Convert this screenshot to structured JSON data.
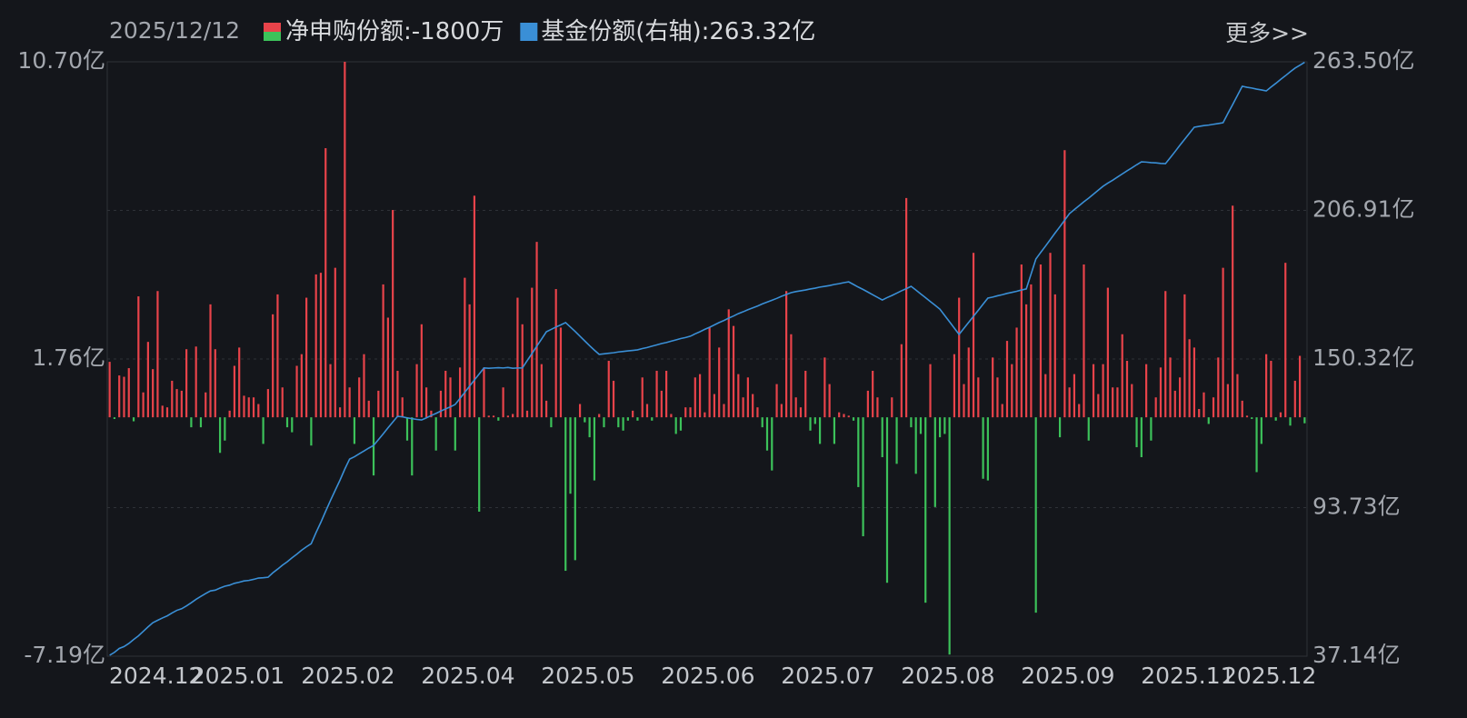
{
  "chart_data": {
    "type": "bar",
    "date": "2025/12/12",
    "more": "更多>>",
    "categories": [
      "2024.12",
      null,
      null,
      null,
      null,
      null,
      null,
      null,
      null,
      null,
      null,
      null,
      null,
      null,
      null,
      null,
      null,
      "2025.01",
      null,
      null,
      null,
      null,
      null,
      null,
      null,
      null,
      null,
      null,
      null,
      null,
      null,
      null,
      null,
      null,
      null,
      null,
      null,
      null,
      null,
      null,
      "2025.02",
      null,
      null,
      null,
      null,
      null,
      null,
      null,
      null,
      null,
      null,
      null,
      null,
      null,
      null,
      null,
      null,
      null,
      null,
      null,
      null,
      null,
      null,
      null,
      null,
      "2025.04",
      null,
      null,
      null,
      null,
      null,
      null,
      null,
      null,
      null,
      null,
      null,
      null,
      null,
      null,
      null,
      null,
      null,
      null,
      null,
      null,
      null,
      null,
      null,
      null,
      "2025.05",
      null,
      null,
      null,
      null,
      null,
      null,
      null,
      null,
      null,
      null,
      null,
      null,
      null,
      null,
      null,
      null,
      null,
      null,
      null,
      null,
      null,
      null,
      null,
      null,
      "2025.06",
      null,
      null,
      null,
      null,
      null,
      null,
      null,
      null,
      null,
      null,
      null,
      null,
      null,
      null,
      null,
      null,
      null,
      null,
      null,
      null,
      null,
      null,
      null,
      null,
      "2025.07",
      null,
      null,
      null,
      null,
      null,
      null,
      null,
      null,
      null,
      null,
      null,
      null,
      null,
      null,
      null,
      null,
      null,
      null,
      null,
      null,
      null,
      null,
      null,
      null,
      "2025.08",
      null,
      null,
      null,
      null,
      null,
      null,
      null,
      null,
      null,
      null,
      null,
      null,
      null,
      null,
      null,
      null,
      null,
      null,
      null,
      null,
      null,
      null,
      null,
      null,
      "2025.09",
      null,
      null,
      null,
      null,
      null,
      null,
      null,
      null,
      null,
      null,
      null,
      null,
      null,
      null,
      null,
      null,
      null,
      null,
      null,
      null,
      null,
      null,
      null,
      null,
      "2025.11",
      null,
      null,
      null,
      null,
      null,
      null,
      null,
      null,
      null,
      null,
      null,
      null,
      null,
      null,
      null,
      null,
      "2025.12",
      null,
      null,
      null,
      null,
      null,
      null,
      null,
      null,
      null,
      null,
      null,
      null,
      null,
      null,
      null,
      null,
      null
    ],
    "series": [
      {
        "name": "净申购份额",
        "latest_label": ":-1800万",
        "type": "bar",
        "color": "#e8434a",
        "negative_color": "#3cc25a",
        "values": [
          1.67,
          -0.05,
          1.26,
          1.22,
          1.48,
          -0.12,
          3.64,
          0.75,
          2.27,
          1.45,
          3.8,
          0.35,
          0.3,
          1.1,
          0.85,
          0.8,
          2.05,
          -0.3,
          2.13,
          -0.3,
          0.75,
          3.4,
          2.05,
          -1.07,
          -0.7,
          0.2,
          1.55,
          2.1,
          0.65,
          0.6,
          0.6,
          0.4,
          -0.8,
          0.85,
          3.1,
          3.7,
          0.9,
          -0.3,
          -0.45,
          1.55,
          1.9,
          3.6,
          -0.85,
          4.3,
          4.35,
          8.1,
          1.6,
          4.5,
          0.3,
          10.7,
          0.9,
          -0.8,
          1.2,
          1.9,
          0.5,
          -1.75,
          0.8,
          4.0,
          3.0,
          6.24,
          1.4,
          0.6,
          -0.7,
          -1.75,
          1.6,
          2.8,
          0.9,
          0.2,
          -1.0,
          0.8,
          1.4,
          1.2,
          -1.0,
          1.5,
          4.2,
          3.4,
          6.67,
          -2.84,
          1.5,
          0.05,
          0.05,
          -0.1,
          0.9,
          0.05,
          0.1,
          3.6,
          2.8,
          0.2,
          3.9,
          5.28,
          1.6,
          0.5,
          -0.3,
          3.86,
          2.7,
          -4.62,
          -2.3,
          -4.3,
          0.4,
          -0.15,
          -0.6,
          -1.9,
          0.1,
          -0.3,
          1.7,
          1.1,
          -0.3,
          -0.4,
          -0.1,
          0.2,
          -0.1,
          1.2,
          0.4,
          -0.1,
          1.4,
          0.8,
          1.4,
          0.1,
          -0.5,
          -0.4,
          0.3,
          0.3,
          1.2,
          1.3,
          0.15,
          2.7,
          0.7,
          2.1,
          0.4,
          3.25,
          2.75,
          1.3,
          0.6,
          1.2,
          0.7,
          0.3,
          -0.3,
          -1.0,
          -1.6,
          1.0,
          0.4,
          3.8,
          2.5,
          0.6,
          0.3,
          1.4,
          -0.4,
          -0.2,
          -0.8,
          1.8,
          1.0,
          -0.8,
          0.15,
          0.1,
          0.05,
          -0.1,
          -2.1,
          -3.58,
          0.8,
          1.4,
          0.6,
          -1.2,
          -4.98,
          0.6,
          -1.4,
          2.2,
          6.6,
          -0.3,
          -1.7,
          -0.5,
          -5.58,
          1.6,
          -2.7,
          -0.6,
          -0.5,
          -7.14,
          1.9,
          3.6,
          1.0,
          2.1,
          4.95,
          1.2,
          -1.85,
          -1.9,
          1.8,
          1.2,
          0.4,
          2.3,
          1.6,
          2.7,
          4.6,
          3.4,
          4.0,
          -5.88,
          4.6,
          1.3,
          4.95,
          3.7,
          -0.6,
          8.04,
          0.9,
          1.3,
          0.4,
          4.6,
          -0.7,
          1.6,
          0.7,
          1.6,
          3.9,
          0.9,
          0.9,
          2.5,
          1.7,
          1.0,
          -0.9,
          -1.2,
          1.6,
          -0.7,
          0.6,
          1.5,
          3.8,
          1.8,
          0.8,
          1.2,
          3.7,
          2.35,
          2.1,
          0.25,
          0.75,
          -0.2,
          0.6,
          1.8,
          4.5,
          1.0,
          6.37,
          1.3,
          0.5,
          0.05,
          -0.05,
          -1.65,
          -0.8,
          1.9,
          1.7,
          -0.1,
          0.15,
          4.65,
          -0.25,
          1.1,
          1.85,
          -0.18
        ]
      },
      {
        "name": "基金份额(右轴)",
        "latest_label": ":263.32亿",
        "type": "line",
        "axis": "y2",
        "color": "#3a8fd6",
        "values": [
          37.5,
          38.6,
          40.1,
          40.8,
          42.0,
          43.5,
          44.9,
          46.6,
          48.3,
          49.9,
          50.8,
          51.7,
          52.5,
          53.6,
          54.6,
          55.2,
          56.3,
          57.5,
          58.8,
          59.9,
          61.0,
          62.0,
          62.3,
          63.1,
          63.8,
          64.2,
          64.9,
          65.3,
          65.8,
          66.0,
          66.4,
          66.9,
          67.0,
          67.2,
          68.9,
          70.3,
          71.8,
          73.1,
          74.6,
          76.0,
          77.5,
          78.8,
          80.0,
          84.2,
          88.1,
          92.3,
          96.4,
          100.3,
          104.2,
          108.4,
          112.2,
          113.1,
          114.2,
          115.3,
          116.4,
          117.4,
          119.6,
          121.8,
          124.1,
          126.3,
          128.5,
          128.3,
          127.9,
          127.6,
          127.3,
          127.1,
          127.9,
          128.8,
          129.6,
          130.5,
          131.3,
          132.1,
          133.0,
          135.3,
          137.6,
          140.0,
          142.3,
          144.6,
          146.9,
          146.8,
          146.9,
          147.0,
          146.9,
          147.1,
          146.8,
          146.9,
          146.9,
          149.7,
          152.4,
          155.2,
          157.9,
          160.7,
          161.6,
          162.5,
          163.3,
          164.2,
          162.5,
          160.8,
          159.0,
          157.2,
          155.4,
          153.7,
          152.1,
          152.3,
          152.5,
          152.7,
          153.0,
          153.2,
          153.4,
          153.6,
          153.8,
          154.3,
          154.7,
          155.2,
          155.7,
          156.2,
          156.6,
          157.1,
          157.6,
          158.1,
          158.5,
          159.0,
          159.9,
          160.7,
          161.6,
          162.4,
          163.3,
          164.2,
          165.0,
          165.9,
          166.7,
          167.6,
          168.3,
          169.1,
          169.8,
          170.5,
          171.3,
          172.0,
          172.7,
          173.4,
          174.2,
          174.9,
          175.6,
          176.0,
          176.3,
          176.6,
          177.0,
          177.3,
          177.7,
          178.0,
          178.3,
          178.7,
          179.0,
          179.4,
          179.7,
          178.7,
          177.7,
          176.8,
          175.8,
          174.8,
          173.8,
          172.8,
          173.7,
          174.5,
          175.4,
          176.3,
          177.1,
          178.0,
          176.6,
          175.1,
          173.7,
          172.2,
          170.8,
          169.3,
          166.9,
          164.5,
          162.1,
          159.7,
          162.0,
          164.3,
          166.6,
          168.9,
          171.2,
          173.5,
          173.9,
          174.4,
          174.8,
          175.3,
          175.7,
          176.1,
          176.6,
          177.0,
          182.7,
          188.4,
          190.9,
          193.3,
          195.8,
          198.3,
          200.7,
          203.2,
          205.7,
          207.2,
          208.7,
          210.2,
          211.6,
          213.1,
          214.6,
          216.1,
          217.3,
          218.4,
          219.6,
          220.8,
          222.0,
          223.1,
          224.3,
          225.4,
          225.3,
          225.1,
          225.0,
          224.8,
          224.7,
          227.0,
          229.3,
          231.7,
          234.0,
          236.3,
          238.6,
          238.9,
          239.2,
          239.4,
          239.7,
          240.0,
          240.3,
          243.8,
          247.2,
          250.7,
          254.2,
          253.8,
          253.5,
          253.1,
          252.8,
          252.4,
          253.9,
          255.3,
          256.8,
          258.2,
          259.7,
          261.1,
          262.2,
          263.32
        ]
      }
    ],
    "ylim": [
      -7.19,
      10.7
    ],
    "yticks": [
      {
        "value": 10.7,
        "label": "10.70亿"
      },
      {
        "value": 1.76,
        "label": "1.76亿"
      },
      {
        "value": -7.19,
        "label": "-7.19亿"
      }
    ],
    "y2lim": [
      37.14,
      263.5
    ],
    "y2ticks": [
      {
        "value": 263.5,
        "label": "263.50亿"
      },
      {
        "value": 206.91,
        "label": "206.91亿"
      },
      {
        "value": 150.32,
        "label": "150.32亿"
      },
      {
        "value": 93.73,
        "label": "93.73亿"
      },
      {
        "value": 37.14,
        "label": "37.14亿"
      }
    ],
    "grid": true
  }
}
